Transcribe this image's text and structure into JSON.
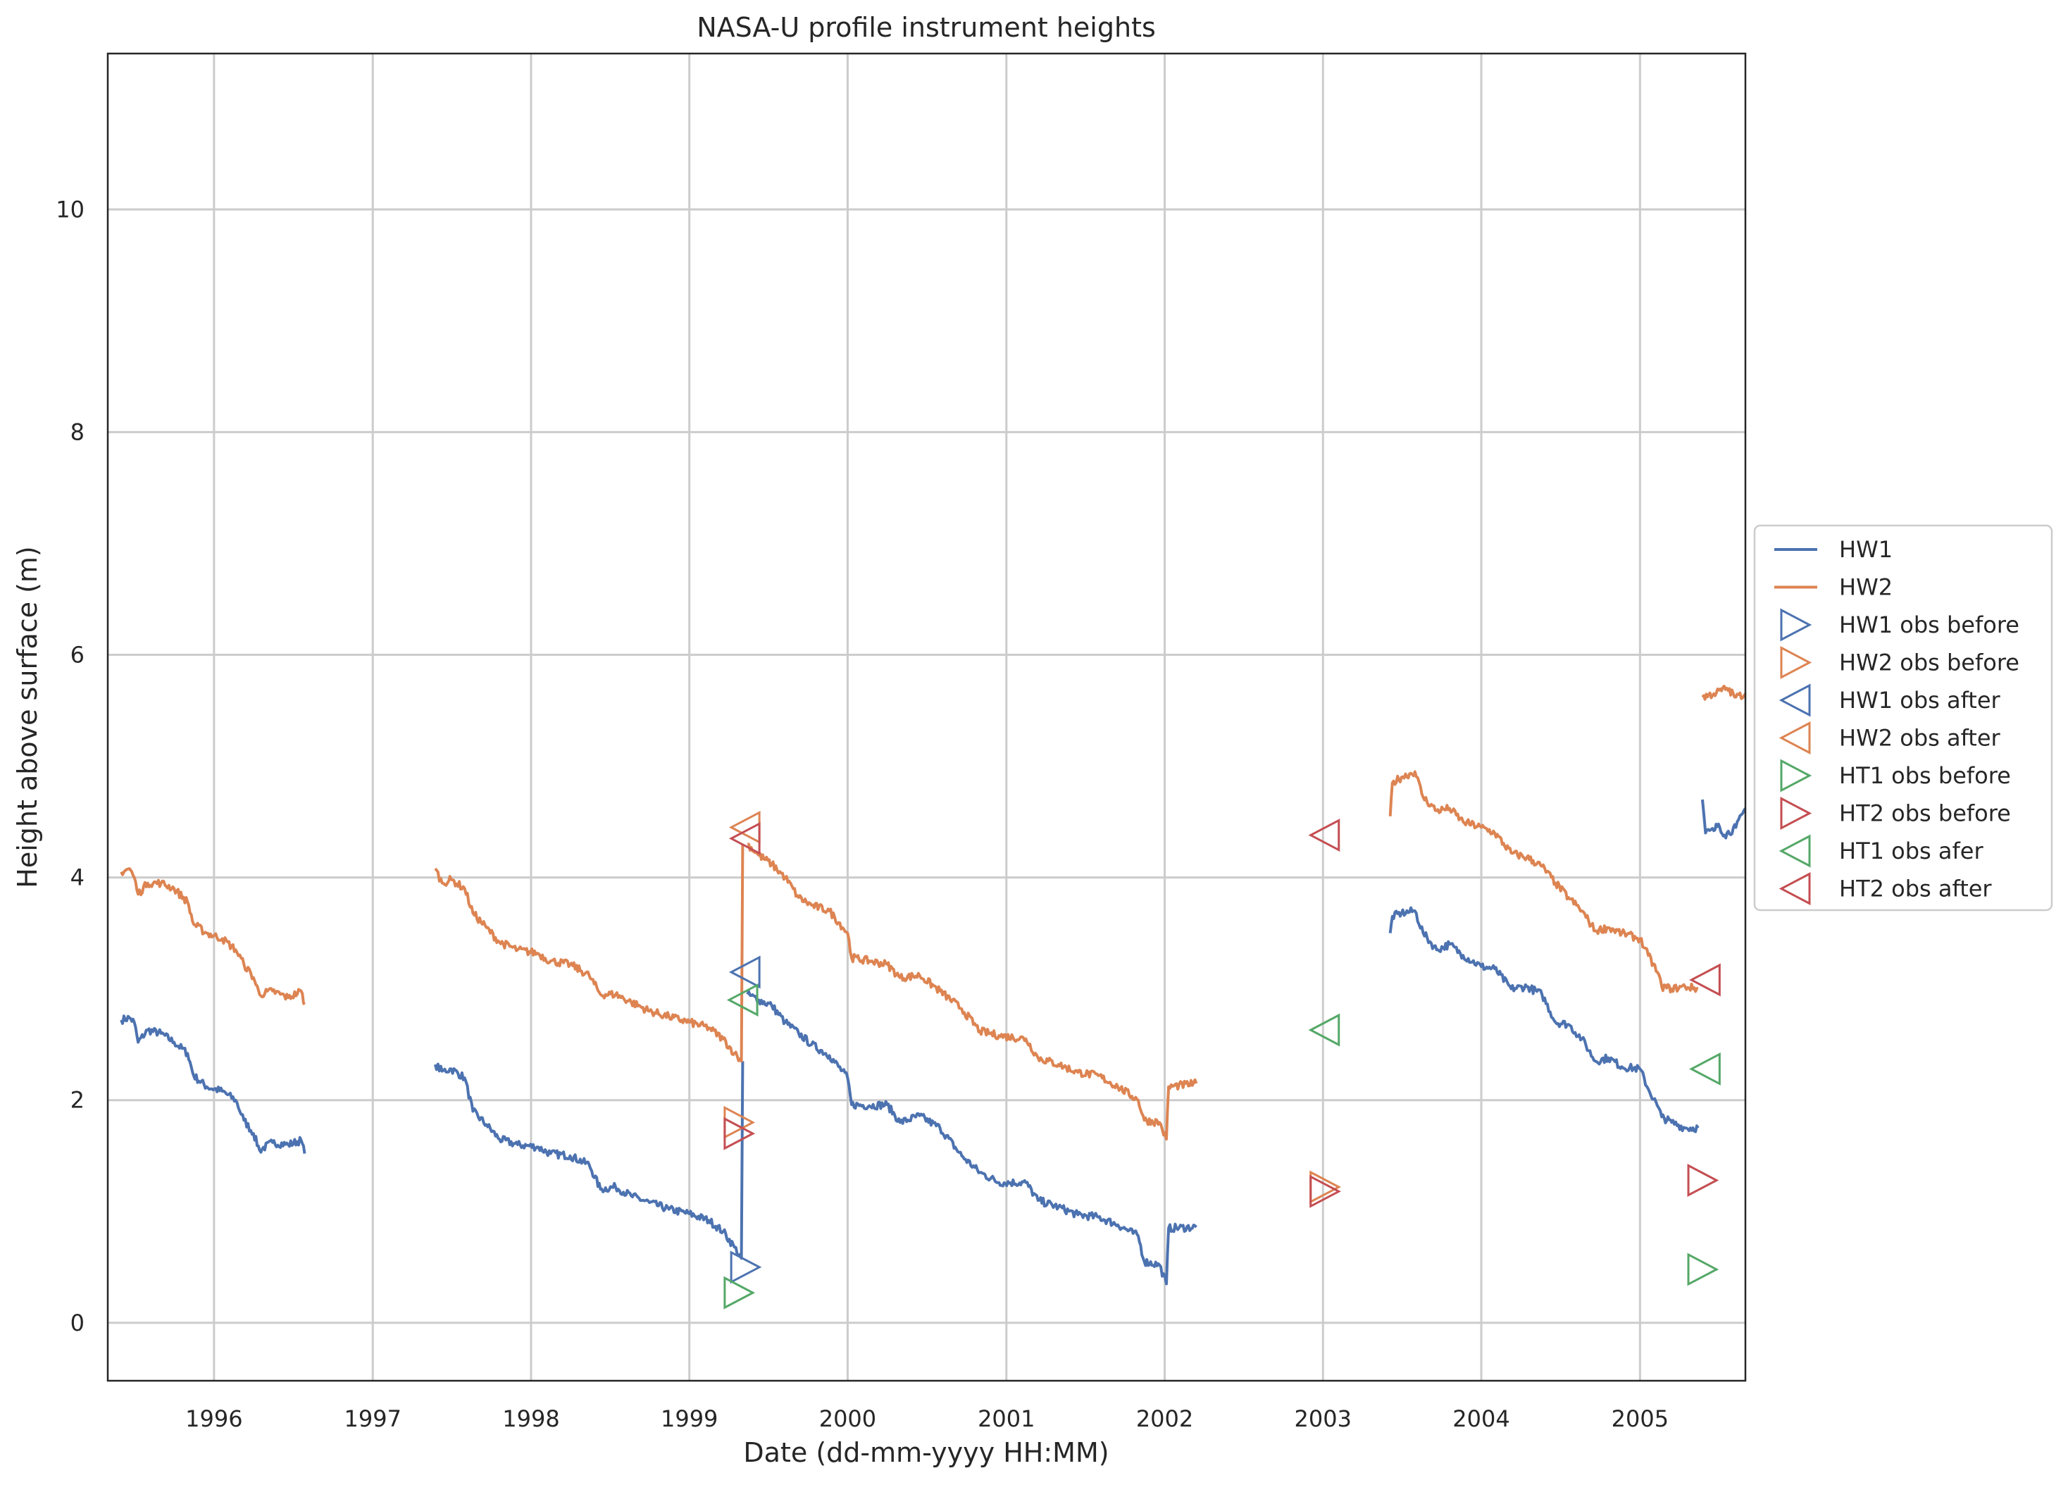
{
  "chart_data": {
    "type": "line",
    "title": "NASA-U profile instrument heights",
    "xlabel": "Date (dd-mm-yyyy HH:MM)",
    "ylabel": "Height above surface (m)",
    "xlim": [
      "1995-05-01",
      "2005-09-01"
    ],
    "ylim": [
      -0.52,
      11.4
    ],
    "x_ticks": [
      "1996",
      "1997",
      "1998",
      "1999",
      "2000",
      "2001",
      "2002",
      "2003",
      "2004",
      "2005"
    ],
    "y_ticks": [
      0,
      2,
      4,
      6,
      8,
      10
    ],
    "grid": true,
    "legend_position": "center-right outside",
    "series": [
      {
        "name": "HW1",
        "kind": "line",
        "color": "#4c72b0",
        "segments": [
          [
            [
              "1995-06-01",
              2.72
            ],
            [
              "1995-06-20",
              2.74
            ],
            [
              "1995-07-01",
              2.7
            ],
            [
              "1995-07-10",
              2.52
            ],
            [
              "1995-08-01",
              2.63
            ],
            [
              "1995-09-01",
              2.6
            ],
            [
              "1995-10-01",
              2.52
            ],
            [
              "1995-11-01",
              2.42
            ],
            [
              "1995-11-15",
              2.22
            ],
            [
              "1995-12-15",
              2.12
            ],
            [
              "1996-01-20",
              2.08
            ],
            [
              "1996-02-20",
              2.0
            ],
            [
              "1996-03-10",
              1.82
            ],
            [
              "1996-04-01",
              1.7
            ],
            [
              "1996-04-15",
              1.55
            ],
            [
              "1996-05-15",
              1.62
            ],
            [
              "1996-06-20",
              1.6
            ],
            [
              "1996-07-20",
              1.64
            ],
            [
              "1996-07-28",
              1.52
            ]
          ],
          [
            [
              "1997-05-25",
              2.32
            ],
            [
              "1997-06-10",
              2.26
            ],
            [
              "1997-07-01",
              2.28
            ],
            [
              "1997-08-01",
              2.2
            ],
            [
              "1997-08-20",
              1.9
            ],
            [
              "1997-09-20",
              1.78
            ],
            [
              "1997-10-20",
              1.65
            ],
            [
              "1997-12-01",
              1.6
            ],
            [
              "1998-01-15",
              1.58
            ],
            [
              "1998-02-15",
              1.52
            ],
            [
              "1998-04-01",
              1.5
            ],
            [
              "1998-05-15",
              1.42
            ],
            [
              "1998-06-10",
              1.2
            ],
            [
              "1998-07-15",
              1.22
            ],
            [
              "1998-08-20",
              1.14
            ],
            [
              "1998-10-01",
              1.08
            ],
            [
              "1998-11-15",
              1.02
            ],
            [
              "1999-01-01",
              0.98
            ],
            [
              "1999-02-15",
              0.92
            ],
            [
              "1999-03-20",
              0.82
            ],
            [
              "1999-04-15",
              0.68
            ],
            [
              "1999-05-01",
              0.58
            ],
            [
              "1999-05-04",
              2.35
            ]
          ],
          [
            [
              "1999-05-15",
              2.95
            ],
            [
              "1999-06-10",
              2.9
            ],
            [
              "1999-07-10",
              2.85
            ],
            [
              "1999-08-10",
              2.7
            ],
            [
              "1999-09-10",
              2.6
            ],
            [
              "1999-10-10",
              2.5
            ],
            [
              "1999-11-20",
              2.4
            ],
            [
              "2000-01-01",
              2.2
            ],
            [
              "2000-01-10",
              1.96
            ],
            [
              "2000-02-20",
              1.95
            ],
            [
              "2000-04-01",
              1.96
            ],
            [
              "2000-05-01",
              1.8
            ],
            [
              "2000-06-15",
              1.86
            ],
            [
              "2000-08-01",
              1.75
            ],
            [
              "2000-09-20",
              1.5
            ],
            [
              "2000-11-01",
              1.35
            ],
            [
              "2000-12-15",
              1.26
            ],
            [
              "2001-02-15",
              1.26
            ],
            [
              "2001-03-15",
              1.1
            ],
            [
              "2001-05-01",
              1.04
            ],
            [
              "2001-06-15",
              0.97
            ],
            [
              "2001-08-01",
              0.95
            ],
            [
              "2001-09-15",
              0.88
            ],
            [
              "2001-11-01",
              0.78
            ],
            [
              "2001-11-15",
              0.55
            ],
            [
              "2001-12-20",
              0.52
            ],
            [
              "2002-01-05",
              0.35
            ],
            [
              "2002-01-10",
              0.85
            ],
            [
              "2002-03-15",
              0.86
            ]
          ],
          [
            [
              "2003-06-05",
              3.5
            ],
            [
              "2003-06-10",
              3.65
            ],
            [
              "2003-07-01",
              3.68
            ],
            [
              "2003-08-01",
              3.7
            ],
            [
              "2003-08-20",
              3.5
            ],
            [
              "2003-09-20",
              3.35
            ],
            [
              "2003-10-20",
              3.4
            ],
            [
              "2003-11-20",
              3.3
            ],
            [
              "2004-01-01",
              3.2
            ],
            [
              "2004-02-01",
              3.18
            ],
            [
              "2004-03-10",
              3.0
            ],
            [
              "2004-04-15",
              3.02
            ],
            [
              "2004-05-20",
              2.95
            ],
            [
              "2004-06-20",
              2.7
            ],
            [
              "2004-07-20",
              2.68
            ],
            [
              "2004-08-20",
              2.55
            ],
            [
              "2004-09-20",
              2.35
            ],
            [
              "2004-10-20",
              2.38
            ],
            [
              "2004-11-20",
              2.3
            ],
            [
              "2005-01-01",
              2.28
            ],
            [
              "2005-01-20",
              2.1
            ],
            [
              "2005-02-10",
              1.95
            ],
            [
              "2005-02-20",
              1.85
            ],
            [
              "2005-03-15",
              1.8
            ],
            [
              "2005-04-15",
              1.75
            ],
            [
              "2005-05-15",
              1.75
            ]
          ],
          [
            [
              "2005-05-25",
              4.7
            ],
            [
              "2005-06-01",
              4.4
            ],
            [
              "2005-06-20",
              4.42
            ],
            [
              "2005-07-01",
              4.48
            ],
            [
              "2005-07-15",
              4.38
            ],
            [
              "2005-08-10",
              4.45
            ],
            [
              "2005-09-01",
              4.62
            ]
          ]
        ]
      },
      {
        "name": "HW2",
        "kind": "line",
        "color": "#dd8452",
        "segments": [
          [
            [
              "1995-06-01",
              4.05
            ],
            [
              "1995-06-20",
              4.08
            ],
            [
              "1995-07-01",
              4.0
            ],
            [
              "1995-07-10",
              3.85
            ],
            [
              "1995-08-01",
              3.95
            ],
            [
              "1995-09-01",
              3.95
            ],
            [
              "1995-10-01",
              3.9
            ],
            [
              "1995-11-01",
              3.78
            ],
            [
              "1995-11-15",
              3.58
            ],
            [
              "1995-12-15",
              3.5
            ],
            [
              "1996-01-20",
              3.45
            ],
            [
              "1996-02-20",
              3.35
            ],
            [
              "1996-03-10",
              3.22
            ],
            [
              "1996-04-01",
              3.1
            ],
            [
              "1996-04-15",
              2.95
            ],
            [
              "1996-05-15",
              2.98
            ],
            [
              "1996-06-20",
              2.92
            ],
            [
              "1996-07-20",
              2.98
            ],
            [
              "1996-07-28",
              2.86
            ]
          ],
          [
            [
              "1997-05-25",
              4.08
            ],
            [
              "1997-06-10",
              3.95
            ],
            [
              "1997-07-01",
              3.98
            ],
            [
              "1997-08-01",
              3.9
            ],
            [
              "1997-08-20",
              3.68
            ],
            [
              "1997-09-20",
              3.55
            ],
            [
              "1997-10-20",
              3.42
            ],
            [
              "1997-12-01",
              3.35
            ],
            [
              "1998-01-15",
              3.32
            ],
            [
              "1998-02-15",
              3.25
            ],
            [
              "1998-04-01",
              3.22
            ],
            [
              "1998-05-15",
              3.12
            ],
            [
              "1998-06-10",
              2.95
            ],
            [
              "1998-07-15",
              2.95
            ],
            [
              "1998-08-20",
              2.88
            ],
            [
              "1998-10-01",
              2.8
            ],
            [
              "1998-11-15",
              2.75
            ],
            [
              "1999-01-01",
              2.7
            ],
            [
              "1999-02-15",
              2.65
            ],
            [
              "1999-03-20",
              2.55
            ],
            [
              "1999-04-15",
              2.42
            ],
            [
              "1999-05-01",
              2.35
            ],
            [
              "1999-05-04",
              4.3
            ]
          ],
          [
            [
              "1999-05-15",
              4.3
            ],
            [
              "1999-06-10",
              4.2
            ],
            [
              "1999-07-10",
              4.12
            ],
            [
              "1999-08-10",
              4.0
            ],
            [
              "1999-09-10",
              3.82
            ],
            [
              "1999-10-10",
              3.75
            ],
            [
              "1999-11-20",
              3.7
            ],
            [
              "2000-01-01",
              3.5
            ],
            [
              "2000-01-10",
              3.28
            ],
            [
              "2000-02-20",
              3.25
            ],
            [
              "2000-04-01",
              3.22
            ],
            [
              "2000-05-01",
              3.1
            ],
            [
              "2000-06-15",
              3.12
            ],
            [
              "2000-08-01",
              2.98
            ],
            [
              "2000-09-20",
              2.82
            ],
            [
              "2000-11-01",
              2.62
            ],
            [
              "2000-12-15",
              2.58
            ],
            [
              "2001-02-15",
              2.55
            ],
            [
              "2001-03-15",
              2.38
            ],
            [
              "2001-05-01",
              2.32
            ],
            [
              "2001-06-15",
              2.25
            ],
            [
              "2001-08-01",
              2.22
            ],
            [
              "2001-09-15",
              2.12
            ],
            [
              "2001-11-01",
              2.0
            ],
            [
              "2001-11-15",
              1.82
            ],
            [
              "2001-12-20",
              1.8
            ],
            [
              "2002-01-05",
              1.65
            ],
            [
              "2002-01-10",
              2.12
            ],
            [
              "2002-03-15",
              2.15
            ]
          ],
          [
            [
              "2003-06-05",
              4.55
            ],
            [
              "2003-06-10",
              4.85
            ],
            [
              "2003-07-01",
              4.9
            ],
            [
              "2003-08-01",
              4.95
            ],
            [
              "2003-08-20",
              4.72
            ],
            [
              "2003-09-20",
              4.6
            ],
            [
              "2003-10-20",
              4.62
            ],
            [
              "2003-11-20",
              4.5
            ],
            [
              "2004-01-01",
              4.45
            ],
            [
              "2004-02-01",
              4.4
            ],
            [
              "2004-03-10",
              4.22
            ],
            [
              "2004-04-15",
              4.18
            ],
            [
              "2004-05-20",
              4.1
            ],
            [
              "2004-06-20",
              3.95
            ],
            [
              "2004-07-20",
              3.82
            ],
            [
              "2004-08-20",
              3.7
            ],
            [
              "2004-09-20",
              3.52
            ],
            [
              "2004-10-20",
              3.55
            ],
            [
              "2004-11-20",
              3.5
            ],
            [
              "2005-01-01",
              3.45
            ],
            [
              "2005-01-20",
              3.3
            ],
            [
              "2005-02-10",
              3.15
            ],
            [
              "2005-02-20",
              3.02
            ],
            [
              "2005-03-15",
              3.0
            ],
            [
              "2005-04-15",
              3.02
            ],
            [
              "2005-05-15",
              3.0
            ]
          ],
          [
            [
              "2005-05-25",
              5.62
            ],
            [
              "2005-06-20",
              5.65
            ],
            [
              "2005-07-20",
              5.7
            ],
            [
              "2005-08-10",
              5.62
            ],
            [
              "2005-09-01",
              5.65
            ]
          ]
        ]
      },
      {
        "name": "HW1 obs before",
        "kind": "marker",
        "marker": "right",
        "color": "#4c72b0",
        "points": [
          [
            "1999-05-10",
            0.5
          ]
        ]
      },
      {
        "name": "HW2 obs before",
        "kind": "marker",
        "marker": "right",
        "color": "#dd8452",
        "points": [
          [
            "1999-04-25",
            1.8
          ],
          [
            "2003-01-05",
            1.22
          ]
        ]
      },
      {
        "name": "HW1 obs after",
        "kind": "marker",
        "marker": "left",
        "color": "#4c72b0",
        "points": [
          [
            "1999-05-10",
            3.15
          ]
        ]
      },
      {
        "name": "HW2 obs after",
        "kind": "marker",
        "marker": "left",
        "color": "#dd8452",
        "points": [
          [
            "1999-05-10",
            4.45
          ]
        ]
      },
      {
        "name": "HT1 obs before",
        "kind": "marker",
        "marker": "right",
        "color": "#55a868",
        "points": [
          [
            "1999-04-25",
            0.27
          ],
          [
            "2005-05-25",
            0.48
          ]
        ]
      },
      {
        "name": "HT2 obs before",
        "kind": "marker",
        "marker": "right",
        "color": "#c44e52",
        "points": [
          [
            "1999-04-25",
            1.7
          ],
          [
            "2003-01-05",
            1.18
          ],
          [
            "2005-05-25",
            1.28
          ]
        ]
      },
      {
        "name": "HT1 obs afer",
        "kind": "marker",
        "marker": "left",
        "color": "#55a868",
        "points": [
          [
            "1999-05-05",
            2.9
          ],
          [
            "2003-01-05",
            2.63
          ],
          [
            "2005-06-01",
            2.28
          ]
        ]
      },
      {
        "name": "HT2 obs after",
        "kind": "marker",
        "marker": "left",
        "color": "#c44e52",
        "points": [
          [
            "1999-05-10",
            4.35
          ],
          [
            "2003-01-05",
            4.38
          ],
          [
            "2005-06-01",
            3.08
          ]
        ]
      }
    ]
  }
}
